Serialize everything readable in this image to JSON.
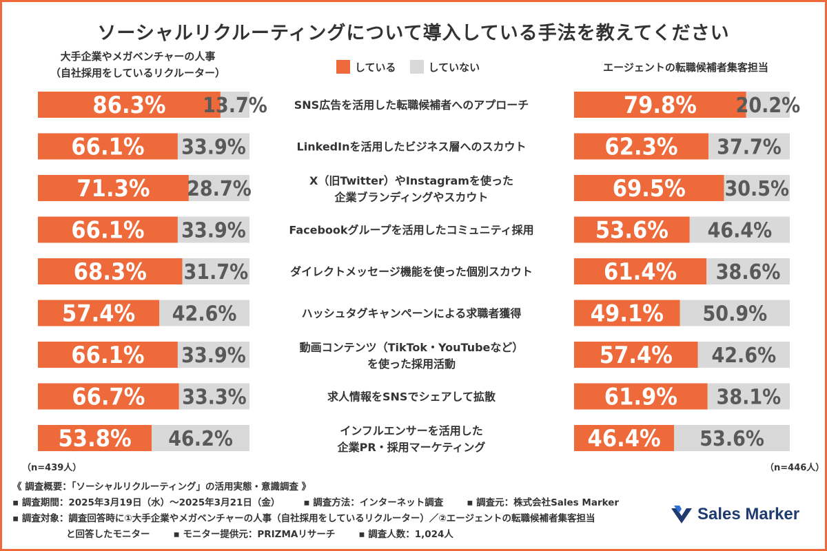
{
  "title": "ソーシャルリクルーティングについて導入している手法を教えてください",
  "left_group": {
    "line1": "大手企業やメガベンチャーの人事",
    "line2": "（自社採用をしているリクルーター）"
  },
  "right_group": {
    "line1": "エージェントの転職候補者集客担当"
  },
  "legend": {
    "yes": "している",
    "no": "していない"
  },
  "colors": {
    "yes": "#ee6a3a",
    "no": "#d9d9d9",
    "yes_text": "#ffffff",
    "no_text": "#595959",
    "border": "#ee6a3a",
    "logo": "#1e3a6e"
  },
  "chart_data": {
    "type": "bar",
    "orientation": "horizontal-stacked-100",
    "categories": [
      [
        "SNS広告を活用した転職候補者へのアプローチ"
      ],
      [
        "LinkedInを活用したビジネス層へのスカウト"
      ],
      [
        "X（旧Twitter）やInstagramを使った",
        "企業ブランディングやスカウト"
      ],
      [
        "Facebookグループを活用したコミュニティ採用"
      ],
      [
        "ダイレクトメッセージ機能を使った個別スカウト"
      ],
      [
        "ハッシュタグキャンペーンによる求職者獲得"
      ],
      [
        "動画コンテンツ（TikTok・YouTubeなど）",
        "を使った採用活動"
      ],
      [
        "求人情報をSNSでシェアして拡散"
      ],
      [
        "インフルエンサーを活用した",
        "企業PR・採用マーケティング"
      ]
    ],
    "groups": [
      {
        "name": "大手企業やメガベンチャーの人事",
        "yes": [
          86.3,
          66.1,
          71.3,
          66.1,
          68.3,
          57.4,
          66.1,
          66.7,
          53.8
        ],
        "no": [
          13.7,
          33.9,
          28.7,
          33.9,
          31.7,
          42.6,
          33.9,
          33.3,
          46.2
        ]
      },
      {
        "name": "エージェントの転職候補者集客担当",
        "yes": [
          79.8,
          62.3,
          69.5,
          53.6,
          61.4,
          49.1,
          57.4,
          61.9,
          46.4
        ],
        "no": [
          20.2,
          37.7,
          30.5,
          46.4,
          38.6,
          50.9,
          42.6,
          38.1,
          53.6
        ]
      }
    ],
    "unit": "%"
  },
  "n_left": "（n=439人）",
  "n_right": "（n=446人）",
  "footer": {
    "line1": "《 調査概要：「ソーシャルリクルーティング」の活用実態・意識調査 》",
    "period": "▪ 調査期間：2025年3月19日（水）〜2025年3月21日（金）",
    "method": "▪ 調査方法：インターネット調査",
    "source": "▪ 調査元：株式会社Sales Marker",
    "target": "▪ 調査対象：調査回答時に①大手企業やメガベンチャーの人事（自社採用をしているリクルーター）／②エージェントの転職候補者集客担当",
    "target2": "と回答したモニター",
    "provider": "▪ モニター提供元：PRIZMAリサーチ",
    "count": "▪ 調査人数：1,024人"
  },
  "logo": {
    "text": "Sales Marker",
    "icon": "sales-marker-logo-icon"
  }
}
